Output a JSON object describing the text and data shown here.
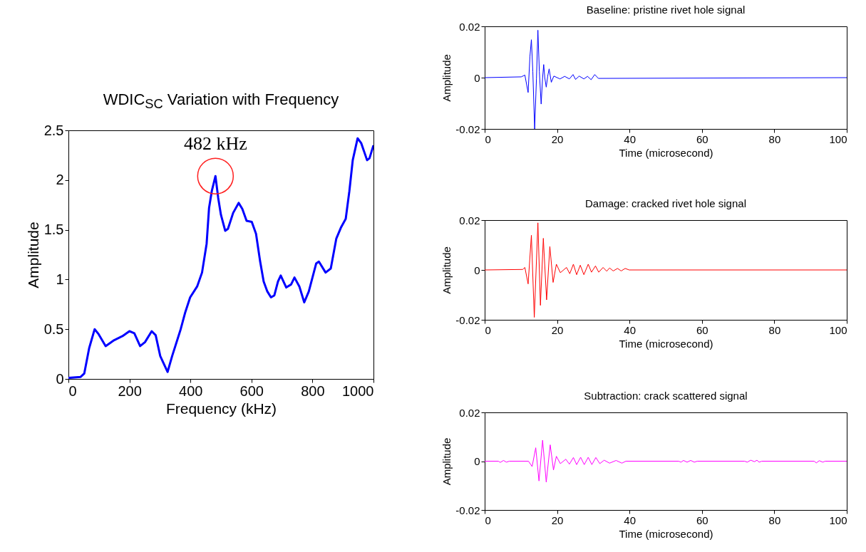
{
  "chart_data": [
    {
      "type": "line",
      "title": "WDIC$_{SC}$ Variation with Frequency",
      "xlabel": "Frequency (kHz)",
      "ylabel": "Amplitude",
      "xlim": [
        0,
        1000
      ],
      "ylim": [
        0,
        2.5
      ],
      "xticks": [
        0,
        200,
        400,
        600,
        800,
        1000
      ],
      "yticks": [
        0,
        0.5,
        1,
        1.5,
        2,
        2.5
      ],
      "x": [
        0,
        40,
        52,
        68,
        86,
        99,
        122,
        150,
        177,
        200,
        216,
        235,
        251,
        273,
        286,
        301,
        325,
        340,
        368,
        383,
        399,
        422,
        438,
        453,
        461,
        470,
        482,
        491,
        500,
        514,
        523,
        540,
        558,
        570,
        584,
        601,
        615,
        628,
        640,
        652,
        664,
        675,
        687,
        696,
        714,
        730,
        741,
        757,
        773,
        788,
        812,
        821,
        843,
        860,
        878,
        893,
        909,
        921,
        932,
        948,
        960,
        979,
        987,
        1000
      ],
      "series": [
        {
          "color": "#0000ff",
          "values": [
            0.01,
            0.02,
            0.055,
            0.31,
            0.5,
            0.45,
            0.33,
            0.39,
            0.43,
            0.48,
            0.46,
            0.33,
            0.37,
            0.48,
            0.44,
            0.23,
            0.07,
            0.23,
            0.5,
            0.67,
            0.82,
            0.93,
            1.07,
            1.36,
            1.72,
            1.89,
            2.04,
            1.82,
            1.65,
            1.49,
            1.51,
            1.67,
            1.77,
            1.71,
            1.59,
            1.58,
            1.46,
            1.19,
            0.98,
            0.88,
            0.82,
            0.84,
            0.98,
            1.04,
            0.92,
            0.95,
            1.02,
            0.93,
            0.77,
            0.88,
            1.16,
            1.18,
            1.07,
            1.11,
            1.41,
            1.52,
            1.61,
            1.89,
            2.2,
            2.42,
            2.37,
            2.2,
            2.22,
            2.35
          ]
        }
      ],
      "annotations": [
        {
          "text": "482 kHz",
          "x": 482,
          "y": 2.04
        }
      ]
    },
    {
      "type": "line",
      "title": "Baseline: pristine rivet hole signal",
      "xlabel": "Time (microsecond)",
      "ylabel": "Amplitude",
      "xlim": [
        0,
        100
      ],
      "ylim": [
        -0.02,
        0.02
      ],
      "xticks": [
        0,
        20,
        40,
        60,
        80,
        100
      ],
      "yticks": [
        -0.02,
        0,
        0.02
      ],
      "x": [
        0,
        10.1,
        11.1,
        12.0,
        12.5,
        12.9,
        13.3,
        13.8,
        14.3,
        14.7,
        15.1,
        15.6,
        16.0,
        16.3,
        16.6,
        17.0,
        17.4,
        17.8,
        18.4,
        19.1,
        20.8,
        22.1,
        23.4,
        24.4,
        25.1,
        26.1,
        27.4,
        28.4,
        29.4,
        30.4,
        31.4,
        100
      ],
      "series": [
        {
          "color": "#0000ff",
          "values": [
            0,
            0.0003,
            0.001,
            -0.0058,
            0.0083,
            0.0148,
            0.0023,
            -0.02,
            -0.0005,
            0.0185,
            0.0023,
            -0.0103,
            0,
            0.0051,
            0,
            -0.0037,
            0.0005,
            0.0034,
            -0.0018,
            0.0006,
            -0.0005,
            0.0005,
            -0.0005,
            0.0012,
            -0.0007,
            0.0006,
            -0.0005,
            0.0005,
            -0.0008,
            0.0012,
            -0.0003,
            0
          ]
        }
      ]
    },
    {
      "type": "line",
      "title": "Damage: cracked rivet hole signal",
      "xlabel": "Time (microsecond)",
      "ylabel": "Amplitude",
      "xlim": [
        0,
        100
      ],
      "ylim": [
        -0.02,
        0.02
      ],
      "xticks": [
        0,
        20,
        40,
        60,
        80,
        100
      ],
      "yticks": [
        -0.02,
        0,
        0.02
      ],
      "x": [
        0,
        10.5,
        11.1,
        12.0,
        12.9,
        13.7,
        14.7,
        15.4,
        16.2,
        17.1,
        18.0,
        18.9,
        19.8,
        20.9,
        22.6,
        23.5,
        24.5,
        25.4,
        26.4,
        27.4,
        28.6,
        29.5,
        30.6,
        31.5,
        32.7,
        33.7,
        34.5,
        35.5,
        36.7,
        37.7,
        38.8,
        39.9,
        100
      ],
      "series": [
        {
          "color": "#ff0000",
          "values": [
            0,
            0.0002,
            0.001,
            -0.0056,
            0.0139,
            -0.019,
            0.0189,
            -0.0142,
            0.0127,
            -0.012,
            0.0094,
            -0.005,
            0.0023,
            -0.0011,
            0.001,
            -0.0015,
            0.0023,
            -0.0019,
            0.0019,
            -0.0019,
            0.0023,
            -0.0009,
            0.0016,
            -0.0009,
            0.001,
            -0.0005,
            0.0008,
            -0.0004,
            0.0006,
            -0.0004,
            0.0006,
            0,
            0
          ]
        }
      ]
    },
    {
      "type": "line",
      "title": "Subtraction: crack scattered signal",
      "xlabel": "Time (microsecond)",
      "ylabel": "Amplitude",
      "xlim": [
        0,
        100
      ],
      "ylim": [
        -0.02,
        0.02
      ],
      "xticks": [
        0,
        20,
        40,
        60,
        80,
        100
      ],
      "yticks": [
        -0.02,
        0,
        0.02
      ],
      "x": [
        0,
        3.8,
        4.3,
        5.2,
        6.0,
        6.8,
        12.1,
        13.1,
        14.1,
        15.0,
        16.0,
        17.0,
        18.1,
        19.0,
        19.8,
        20.9,
        22.4,
        23.4,
        24.5,
        25.4,
        26.5,
        27.5,
        28.6,
        29.6,
        30.7,
        31.8,
        33.0,
        34.5,
        36.3,
        37.9,
        39.0,
        53.6,
        54.2,
        54.9,
        55.9,
        56.9,
        57.9,
        58.7,
        71.8,
        72.5,
        73.5,
        74.5,
        75.2,
        75.8,
        76.5,
        91.0,
        91.6,
        92.4,
        93.4,
        94.0,
        100
      ],
      "series": [
        {
          "color": "#ff00ff",
          "values": [
            0,
            0,
            -0.0005,
            0.0003,
            -0.0004,
            0,
            0,
            -0.0022,
            0.0055,
            -0.0081,
            0.0086,
            -0.0086,
            0.0067,
            -0.0036,
            0.002,
            -0.001,
            0.0008,
            -0.0012,
            0.0015,
            -0.0014,
            0.0016,
            -0.0014,
            0.0016,
            -0.0014,
            0.0015,
            -0.001,
            0.0004,
            -0.0008,
            0.0003,
            -0.0008,
            0,
            0,
            -0.0004,
            0.0003,
            -0.0004,
            0.0003,
            -0.0004,
            0,
            0,
            -0.0004,
            0.0004,
            -0.0002,
            0.0004,
            -0.0004,
            0,
            0,
            -0.0007,
            0.0002,
            -0.0004,
            0,
            0
          ]
        }
      ]
    }
  ]
}
